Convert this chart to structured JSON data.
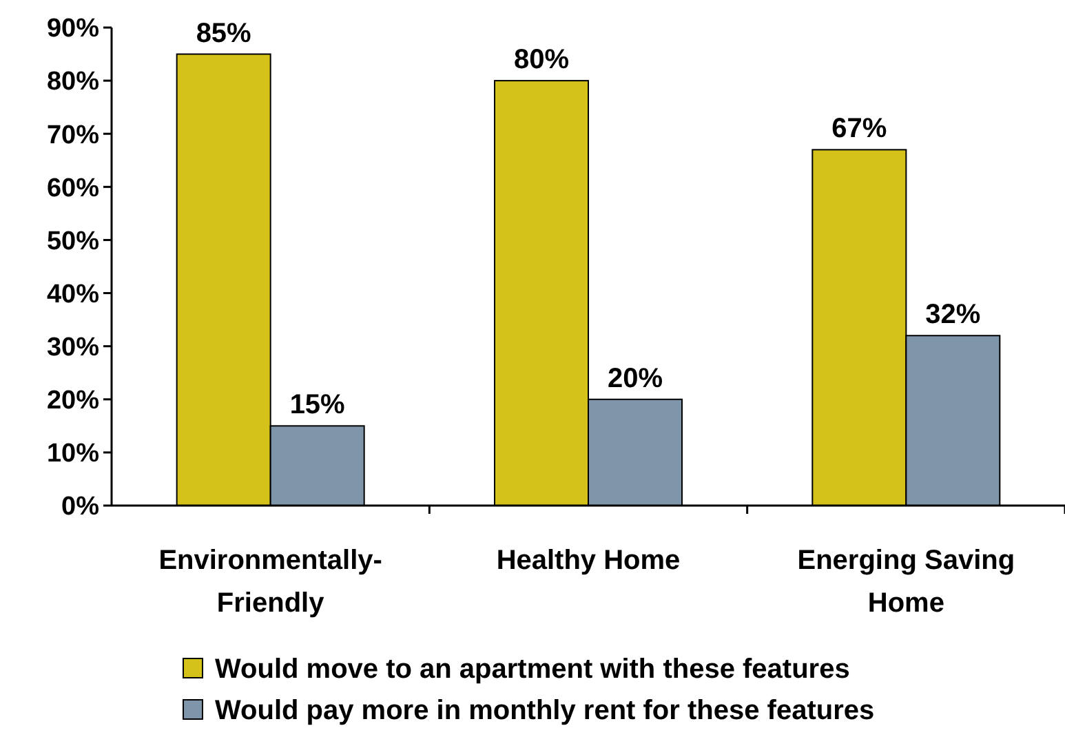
{
  "chart_data": {
    "type": "bar",
    "categories": [
      "Environmentally-Friendly",
      "Healthy Home",
      "Energing Saving Home"
    ],
    "series": [
      {
        "name": "Would move to an apartment with these features",
        "color": "#d4c21a",
        "values": [
          85,
          80,
          67
        ]
      },
      {
        "name": "Would pay more in monthly rent for these features",
        "color": "#7f95aa",
        "values": [
          15,
          20,
          32
        ]
      }
    ],
    "ylim": [
      0,
      90
    ],
    "yticks": [
      {
        "value": 0,
        "label": "0%"
      },
      {
        "value": 10,
        "label": "10%"
      },
      {
        "value": 20,
        "label": "20%"
      },
      {
        "value": 30,
        "label": "30%"
      },
      {
        "value": 40,
        "label": "40%"
      },
      {
        "value": 50,
        "label": "50%"
      },
      {
        "value": 60,
        "label": "60%"
      },
      {
        "value": 70,
        "label": "70%"
      },
      {
        "value": 80,
        "label": "80%"
      },
      {
        "value": 90,
        "label": "90%"
      }
    ],
    "value_labels": [
      [
        "85%",
        "80%",
        "67%"
      ],
      [
        "15%",
        "20%",
        "32%"
      ]
    ],
    "legend": "bottom",
    "grid": false
  }
}
